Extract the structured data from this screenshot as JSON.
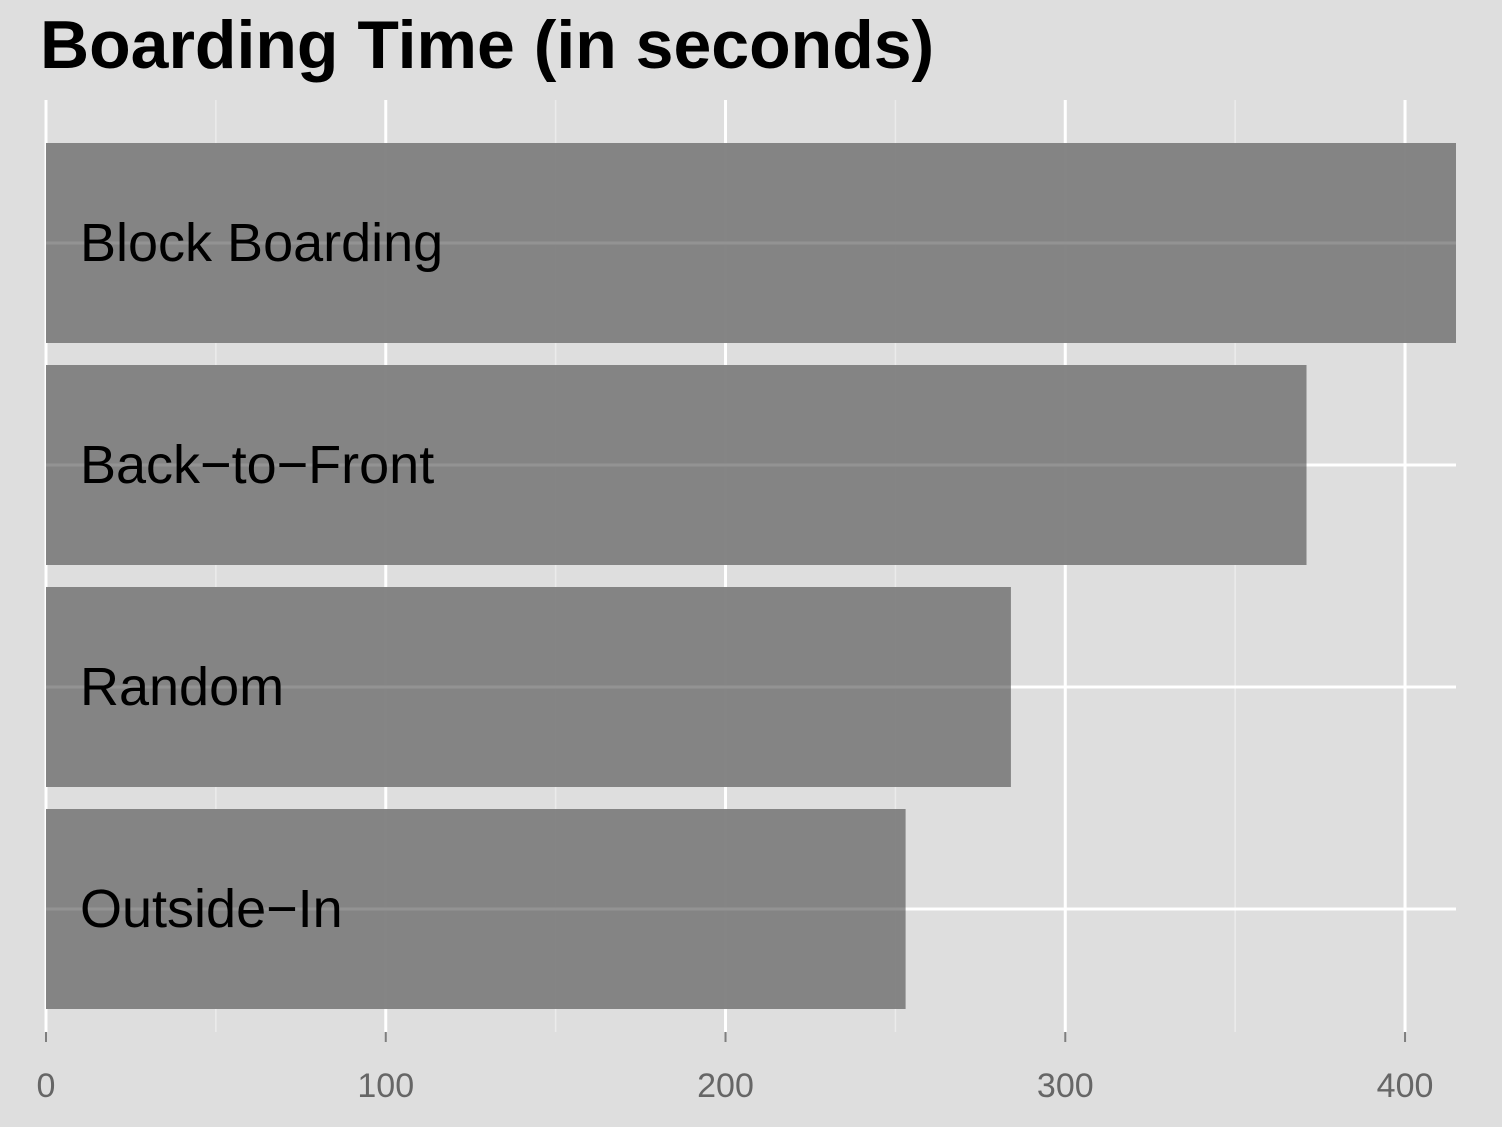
{
  "chart_data": {
    "type": "bar",
    "orientation": "horizontal",
    "title": "Boarding Time (in seconds)",
    "xlabel": "",
    "ylabel": "",
    "categories": [
      "Block Boarding",
      "Back−to−Front",
      "Random",
      "Outside−In"
    ],
    "values": [
      415,
      371,
      284,
      253
    ],
    "xlim": [
      0,
      415
    ],
    "xticks": [
      0,
      100,
      200,
      300,
      400
    ],
    "xtick_labels": [
      "0",
      "100",
      "200",
      "300",
      "400"
    ],
    "grid": true,
    "legend": "none",
    "colors": {
      "background": "#dedede",
      "bar": "#808080",
      "grid_major": "#ffffff",
      "grid_minor": "#ebebeb",
      "tick_text": "#666666",
      "bar_text": "#000000"
    }
  }
}
